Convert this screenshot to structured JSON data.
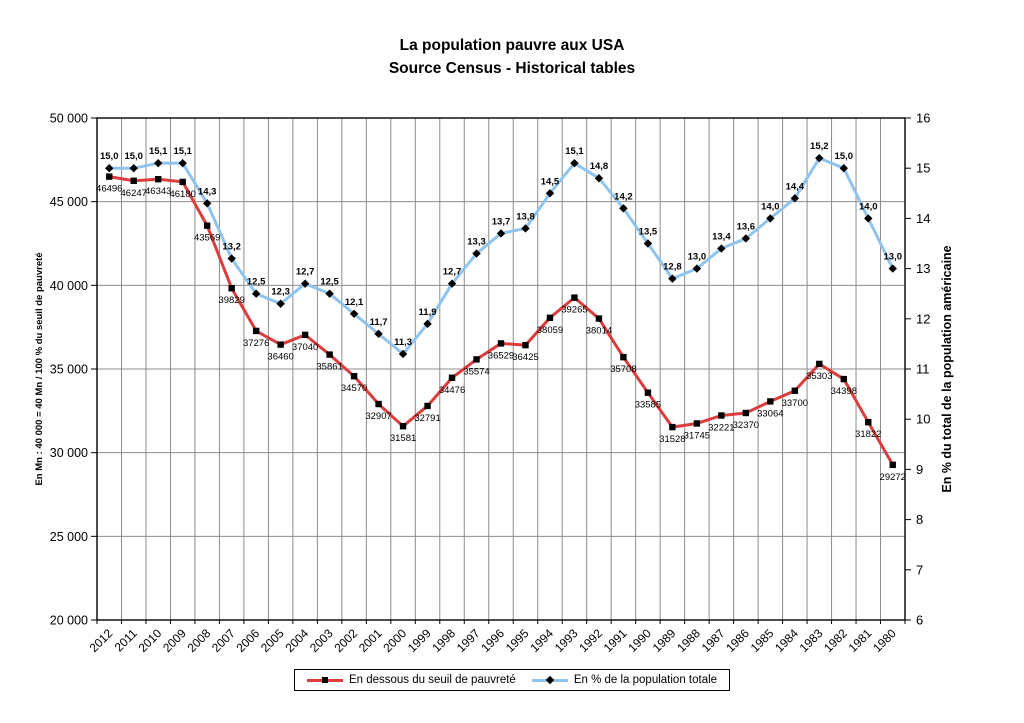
{
  "chart_data": {
    "type": "line",
    "title": "La population pauvre aux USA",
    "subtitle": "Source Census - Historical tables",
    "categories": [
      "2012",
      "2011",
      "2010",
      "2009",
      "2008",
      "2007",
      "2006",
      "2005",
      "2004",
      "2003",
      "2002",
      "2001",
      "2000",
      "1999",
      "1998",
      "1997",
      "1996",
      "1995",
      "1994",
      "1993",
      "1992",
      "1991",
      "1990",
      "1989",
      "1988",
      "1987",
      "1986",
      "1985",
      "1984",
      "1983",
      "1982",
      "1981",
      "1980"
    ],
    "series": [
      {
        "name": "En dessous du seuil de pauvreté",
        "axis": "left",
        "color": "#DC3C3C",
        "marker": "square",
        "label_color": "#808080",
        "values": [
          46496,
          46247,
          46343,
          46180,
          43569,
          39829,
          37276,
          36460,
          37040,
          35861,
          34570,
          32907,
          31581,
          32791,
          34476,
          35574,
          36529,
          36425,
          38059,
          39265,
          38014,
          35708,
          33585,
          31528,
          31745,
          32221,
          32370,
          33064,
          33700,
          35303,
          34398,
          31822,
          29272
        ]
      },
      {
        "name": "En % de la population totale",
        "axis": "right",
        "color": "#8EC4EE",
        "marker": "diamond",
        "label_color": "#000000",
        "values": [
          15.0,
          15.0,
          15.1,
          15.1,
          14.3,
          13.2,
          12.5,
          12.3,
          12.7,
          12.5,
          12.1,
          11.7,
          11.3,
          11.9,
          12.7,
          13.3,
          13.7,
          13.8,
          14.5,
          15.1,
          14.8,
          14.2,
          13.5,
          12.8,
          13.0,
          13.4,
          13.6,
          14.0,
          14.4,
          15.2,
          15.0,
          14.0,
          13.0
        ]
      }
    ],
    "left_axis": {
      "label": "En Mn : 40 000 = 40 Mn / 100 % du seuil de pauvreté",
      "min": 20000,
      "max": 50000,
      "step": 5000,
      "ticks": [
        "50 000",
        "45 000",
        "40 000",
        "35 000",
        "30 000",
        "25 000",
        "20 000"
      ]
    },
    "right_axis": {
      "label": "En % du total de la population américaine",
      "min": 6,
      "max": 16,
      "step": 1,
      "ticks": [
        "16",
        "15",
        "14",
        "13",
        "12",
        "11",
        "10",
        "9",
        "8",
        "7",
        "6"
      ]
    },
    "grid": "on",
    "legend_position": "bottom",
    "grid_color": "#8C8C8C",
    "frame_color": "#000000"
  }
}
